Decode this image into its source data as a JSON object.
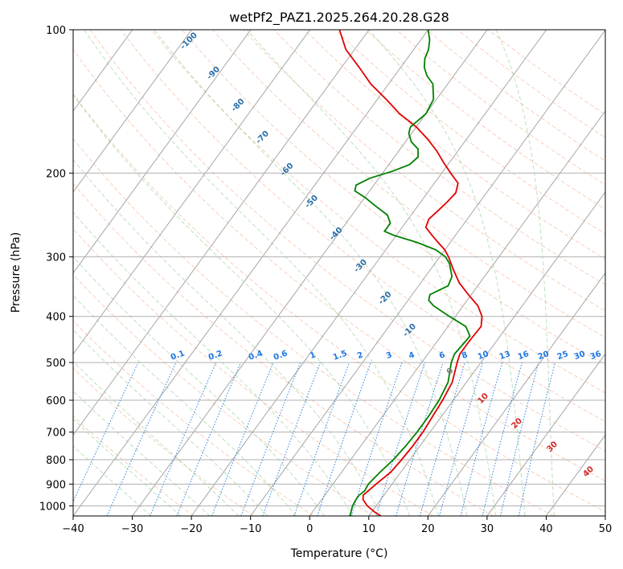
{
  "chart_data": {
    "type": "line",
    "title": "wetPf2_PAZ1.2025.264.20.28.G28",
    "xlabel": "Temperature (°C)",
    "ylabel": "Pressure (hPa)",
    "xlim": [
      -40,
      50
    ],
    "ylim": [
      1050,
      100
    ],
    "y_scale": "log",
    "grid": true,
    "x_ticks": [
      -40,
      -30,
      -20,
      -10,
      0,
      10,
      20,
      30,
      40,
      50
    ],
    "x_tick_labels": [
      "−40",
      "−30",
      "−20",
      "−10",
      "0",
      "10",
      "20",
      "30",
      "40",
      "50"
    ],
    "y_ticks": [
      100,
      200,
      300,
      400,
      500,
      600,
      700,
      800,
      900,
      1000
    ],
    "y_tick_labels": [
      "100",
      "200",
      "300",
      "400",
      "500",
      "600",
      "700",
      "800",
      "900",
      "1000"
    ],
    "isotherm_labels": {
      "values": [
        -100,
        -90,
        -80,
        -70,
        -60,
        -50,
        -40,
        -30,
        -20,
        -10
      ],
      "text": [
        "-100",
        "-90",
        "-80",
        "-70",
        "-60",
        "-50",
        "-40",
        "-30",
        "-20",
        "-10"
      ],
      "color": "#2b6fa8"
    },
    "warm_isotherm_labels": {
      "values": [
        0,
        10,
        20,
        30,
        40
      ],
      "text": [
        "0",
        "10",
        "20",
        "30",
        "40"
      ],
      "colors": [
        "#808080",
        "#d62728",
        "#d62728",
        "#d62728",
        "#d62728"
      ]
    },
    "mixing_ratio_labels": {
      "values": [
        0.1,
        0.2,
        0.4,
        0.6,
        1,
        1.5,
        2,
        3,
        4,
        6,
        8,
        10,
        13,
        16,
        20,
        25,
        30,
        36
      ],
      "text": [
        "0.1",
        "0.2",
        "0.4",
        "0.6",
        "1",
        "1.5",
        "2",
        "3",
        "4",
        "6",
        "8",
        "10",
        "13",
        "16",
        "20",
        "25",
        "30",
        "36"
      ],
      "color": "#1f77e0"
    },
    "series": [
      {
        "color": "#e00000",
        "points": [
          [
            1050,
            12
          ],
          [
            1030,
            10.5
          ],
          [
            1000,
            8.5
          ],
          [
            970,
            7
          ],
          [
            950,
            6.5
          ],
          [
            930,
            6.8
          ],
          [
            900,
            7.3
          ],
          [
            850,
            8.3
          ],
          [
            800,
            8.6
          ],
          [
            750,
            8.8
          ],
          [
            700,
            8.8
          ],
          [
            650,
            8.5
          ],
          [
            600,
            8.2
          ],
          [
            550,
            7.6
          ],
          [
            500,
            6.0
          ],
          [
            480,
            5.4
          ],
          [
            450,
            5.4
          ],
          [
            420,
            5.6
          ],
          [
            400,
            4.5
          ],
          [
            380,
            2.5
          ],
          [
            360,
            -0.5
          ],
          [
            340,
            -3.5
          ],
          [
            320,
            -6.0
          ],
          [
            300,
            -8.5
          ],
          [
            290,
            -10.0
          ],
          [
            280,
            -12.0
          ],
          [
            270,
            -14.0
          ],
          [
            260,
            -16.0
          ],
          [
            250,
            -16.5
          ],
          [
            240,
            -16.0
          ],
          [
            230,
            -15.5
          ],
          [
            220,
            -15.2
          ],
          [
            210,
            -16.0
          ],
          [
            200,
            -18.5
          ],
          [
            190,
            -21.0
          ],
          [
            180,
            -23.5
          ],
          [
            170,
            -26.5
          ],
          [
            160,
            -30.0
          ],
          [
            150,
            -34.5
          ],
          [
            140,
            -38.5
          ],
          [
            130,
            -43.0
          ],
          [
            120,
            -47.0
          ],
          [
            110,
            -51.5
          ],
          [
            100,
            -55.0
          ]
        ]
      },
      {
        "color": "#008000",
        "points": [
          [
            1050,
            6.8
          ],
          [
            1030,
            6.5
          ],
          [
            1000,
            6.0
          ],
          [
            970,
            5.8
          ],
          [
            950,
            5.8
          ],
          [
            930,
            6.2
          ],
          [
            900,
            6.0
          ],
          [
            850,
            6.5
          ],
          [
            800,
            7.2
          ],
          [
            750,
            7.6
          ],
          [
            700,
            7.8
          ],
          [
            650,
            7.8
          ],
          [
            600,
            7.6
          ],
          [
            550,
            6.9
          ],
          [
            500,
            5.0
          ],
          [
            480,
            4.5
          ],
          [
            460,
            4.7
          ],
          [
            440,
            4.9
          ],
          [
            420,
            3.0
          ],
          [
            400,
            -1.0
          ],
          [
            380,
            -5.0
          ],
          [
            370,
            -6.5
          ],
          [
            360,
            -7.0
          ],
          [
            345,
            -5.0
          ],
          [
            330,
            -5.5
          ],
          [
            310,
            -7.5
          ],
          [
            300,
            -9.0
          ],
          [
            290,
            -11.5
          ],
          [
            280,
            -15.5
          ],
          [
            270,
            -20.5
          ],
          [
            265,
            -22.5
          ],
          [
            255,
            -22.5
          ],
          [
            245,
            -24.0
          ],
          [
            235,
            -27.0
          ],
          [
            225,
            -30.0
          ],
          [
            218,
            -32.5
          ],
          [
            212,
            -33.0
          ],
          [
            205,
            -31.5
          ],
          [
            198,
            -28.5
          ],
          [
            192,
            -26.5
          ],
          [
            185,
            -26.0
          ],
          [
            178,
            -27.0
          ],
          [
            172,
            -29.0
          ],
          [
            165,
            -30.5
          ],
          [
            160,
            -31.0
          ],
          [
            155,
            -30.5
          ],
          [
            150,
            -30.0
          ],
          [
            140,
            -30.5
          ],
          [
            130,
            -32.5
          ],
          [
            125,
            -34.5
          ],
          [
            120,
            -36.0
          ],
          [
            115,
            -37.0
          ],
          [
            110,
            -37.5
          ],
          [
            105,
            -38.5
          ],
          [
            100,
            -40.0
          ]
        ]
      }
    ]
  }
}
